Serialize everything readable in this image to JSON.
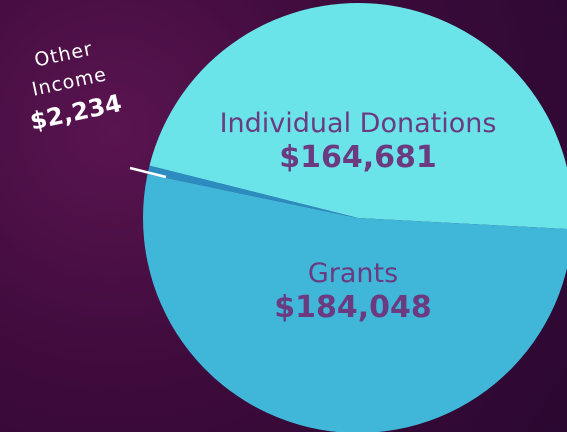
{
  "chart_data": {
    "type": "pie",
    "categories": [
      "Individual Donations",
      "Grants",
      "Other Income"
    ],
    "values": [
      164681,
      184048,
      2234
    ],
    "value_labels": [
      "$164,681",
      "$184,048",
      "$2,234"
    ],
    "colors": [
      "#6ae4e9",
      "#40b7d9",
      "#2c8cc0"
    ]
  }
}
